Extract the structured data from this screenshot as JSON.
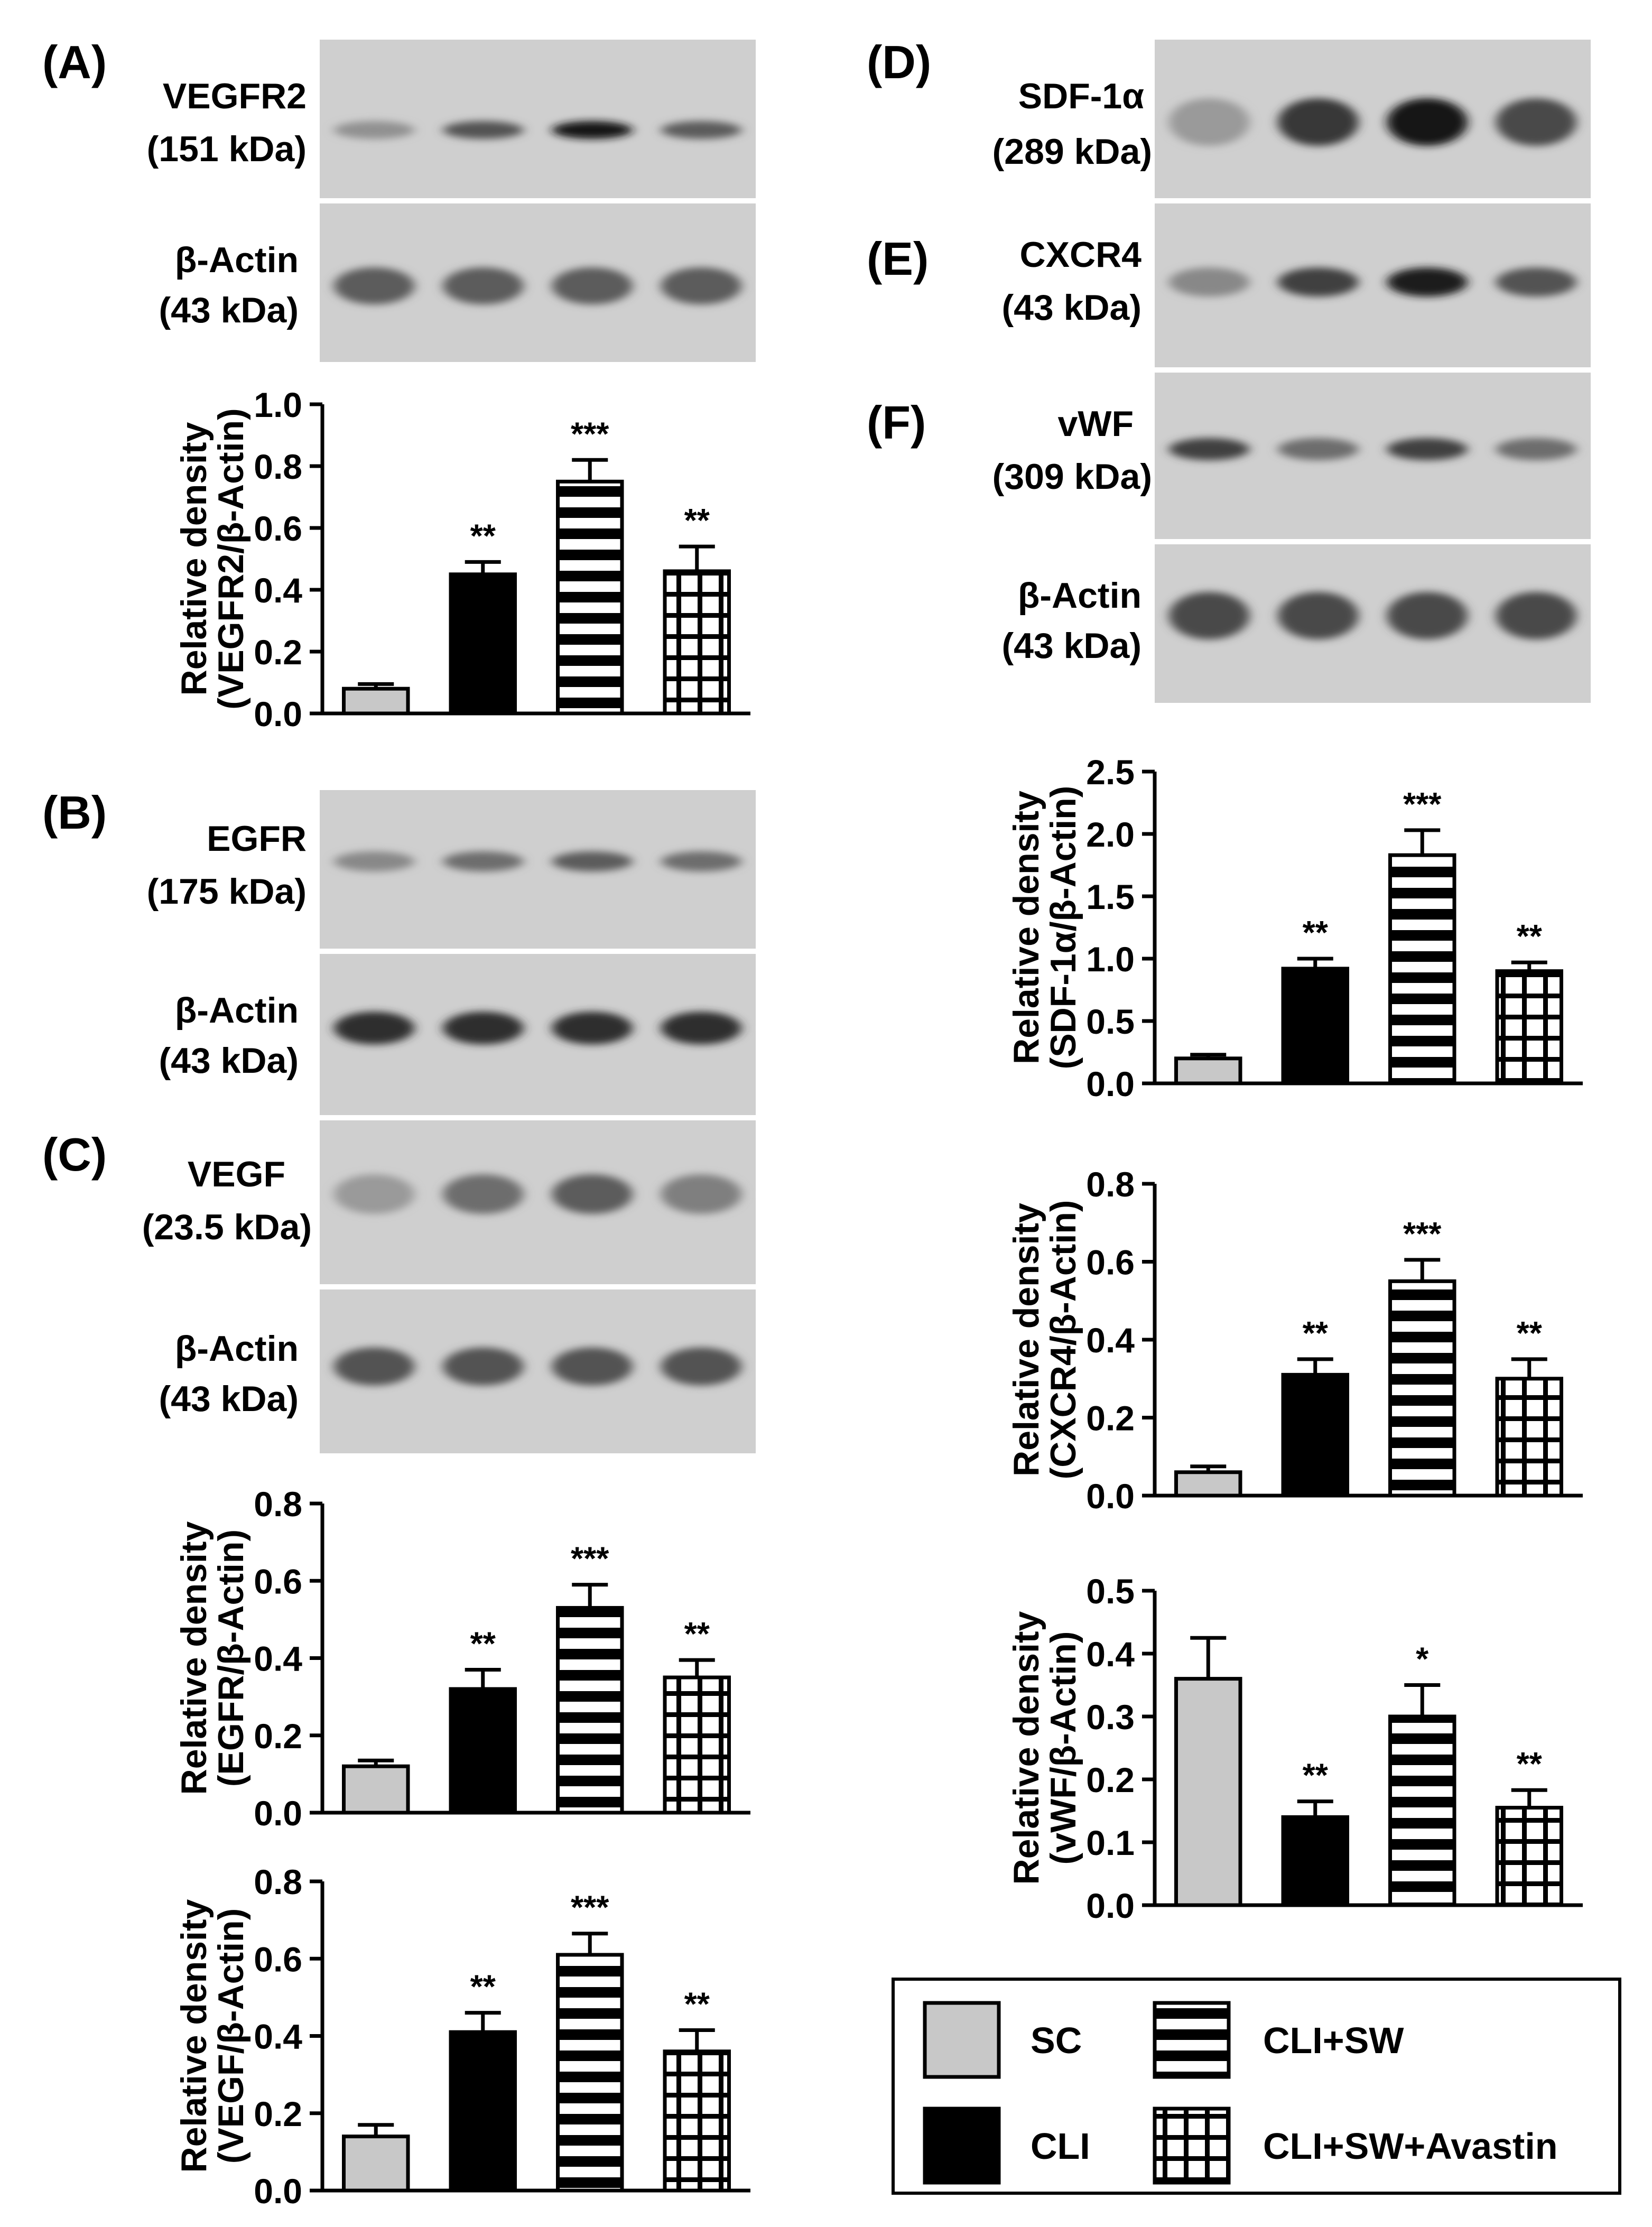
{
  "figure": {
    "panels": [
      {
        "letter": "(A)"
      },
      {
        "letter": "(B)"
      },
      {
        "letter": "(C)"
      },
      {
        "letter": "(D)"
      },
      {
        "letter": "(E)"
      },
      {
        "letter": "(F)"
      }
    ],
    "blots": [
      {
        "id": "vegfr2",
        "name": "VEGFR2",
        "kda": "(151 kDa)",
        "intensity": [
          0.25,
          0.6,
          0.95,
          0.55
        ]
      },
      {
        "id": "actin-a",
        "name": "β-Actin",
        "kda": "(43 kDa)",
        "intensity": [
          0.55,
          0.55,
          0.55,
          0.55
        ]
      },
      {
        "id": "egfr",
        "name": "EGFR",
        "kda": "(175 kDa)",
        "intensity": [
          0.3,
          0.45,
          0.55,
          0.45
        ]
      },
      {
        "id": "actin-b",
        "name": "β-Actin",
        "kda": "(43 kDa)",
        "intensity": [
          0.8,
          0.8,
          0.8,
          0.8
        ]
      },
      {
        "id": "vegf",
        "name": "VEGF",
        "kda": "(23.5 kDa)",
        "intensity": [
          0.2,
          0.45,
          0.55,
          0.35
        ]
      },
      {
        "id": "actin-c",
        "name": "β-Actin",
        "kda": "(43 kDa)",
        "intensity": [
          0.6,
          0.6,
          0.6,
          0.6
        ]
      },
      {
        "id": "sdf1a",
        "name": "SDF-1α",
        "kda": "(289 kDa)",
        "intensity": [
          0.2,
          0.75,
          0.95,
          0.65
        ]
      },
      {
        "id": "cxcr4",
        "name": "CXCR4",
        "kda": "(43 kDa)",
        "intensity": [
          0.3,
          0.7,
          0.9,
          0.6
        ]
      },
      {
        "id": "vwf",
        "name": "vWF",
        "kda": "(309 kDa)",
        "intensity": [
          0.7,
          0.45,
          0.7,
          0.45
        ]
      },
      {
        "id": "actin-f",
        "name": "β-Actin",
        "kda": "(43 kDa)",
        "intensity": [
          0.65,
          0.65,
          0.65,
          0.65
        ]
      }
    ],
    "legend": {
      "items": [
        {
          "label": "SC",
          "pattern": "gray"
        },
        {
          "label": "CLI+SW",
          "pattern": "hlines"
        },
        {
          "label": "CLI",
          "pattern": "black"
        },
        {
          "label": "CLI+SW+Avastin",
          "pattern": "grid"
        }
      ]
    }
  },
  "chart_data": [
    {
      "id": "vegfr2-chart",
      "type": "bar",
      "categories": [
        "SC",
        "CLI",
        "CLI+SW",
        "CLI+SW+Avastin"
      ],
      "values": [
        0.08,
        0.45,
        0.75,
        0.46
      ],
      "errors": [
        0.015,
        0.04,
        0.07,
        0.08
      ],
      "annotations": [
        "",
        "**",
        "***",
        "**"
      ],
      "ylabel_line1": "Relative density",
      "ylabel_line2": "(VEGFR2/β-Actin)",
      "ylim": [
        0,
        1.0
      ],
      "yticks": [
        "0.0",
        "0.2",
        "0.4",
        "0.6",
        "0.8",
        "1.0"
      ]
    },
    {
      "id": "egfr-chart",
      "type": "bar",
      "categories": [
        "SC",
        "CLI",
        "CLI+SW",
        "CLI+SW+Avastin"
      ],
      "values": [
        0.12,
        0.32,
        0.53,
        0.35
      ],
      "errors": [
        0.015,
        0.05,
        0.06,
        0.045
      ],
      "annotations": [
        "",
        "**",
        "***",
        "**"
      ],
      "ylabel_line1": "Relative density",
      "ylabel_line2": "(EGFR/β-Actin)",
      "ylim": [
        0,
        0.8
      ],
      "yticks": [
        "0.0",
        "0.2",
        "0.4",
        "0.6",
        "0.8"
      ]
    },
    {
      "id": "vegf-chart",
      "type": "bar",
      "categories": [
        "SC",
        "CLI",
        "CLI+SW",
        "CLI+SW+Avastin"
      ],
      "values": [
        0.14,
        0.41,
        0.61,
        0.36
      ],
      "errors": [
        0.03,
        0.05,
        0.055,
        0.055
      ],
      "annotations": [
        "",
        "**",
        "***",
        "**"
      ],
      "ylabel_line1": "Relative density",
      "ylabel_line2": "(VEGF/β-Actin)",
      "ylim": [
        0,
        0.8
      ],
      "yticks": [
        "0.0",
        "0.2",
        "0.4",
        "0.6",
        "0.8"
      ]
    },
    {
      "id": "sdf1a-chart",
      "type": "bar",
      "categories": [
        "SC",
        "CLI",
        "CLI+SW",
        "CLI+SW+Avastin"
      ],
      "values": [
        0.2,
        0.92,
        1.83,
        0.9
      ],
      "errors": [
        0.03,
        0.08,
        0.2,
        0.07
      ],
      "annotations": [
        "",
        "**",
        "***",
        "**"
      ],
      "ylabel_line1": "Relative density",
      "ylabel_line2": "(SDF-1α/β-Actin)",
      "ylim": [
        0,
        2.5
      ],
      "yticks": [
        "0.0",
        "0.5",
        "1.0",
        "1.5",
        "2.0",
        "2.5"
      ]
    },
    {
      "id": "cxcr4-chart",
      "type": "bar",
      "categories": [
        "SC",
        "CLI",
        "CLI+SW",
        "CLI+SW+Avastin"
      ],
      "values": [
        0.06,
        0.31,
        0.55,
        0.3
      ],
      "errors": [
        0.015,
        0.04,
        0.055,
        0.05
      ],
      "annotations": [
        "",
        "**",
        "***",
        "**"
      ],
      "ylabel_line1": "Relative density",
      "ylabel_line2": "(CXCR4/β-Actin)",
      "ylim": [
        0,
        0.8
      ],
      "yticks": [
        "0.0",
        "0.2",
        "0.4",
        "0.6",
        "0.8"
      ]
    },
    {
      "id": "vwf-chart",
      "type": "bar",
      "categories": [
        "SC",
        "CLI",
        "CLI+SW",
        "CLI+SW+Avastin"
      ],
      "values": [
        0.36,
        0.14,
        0.3,
        0.155
      ],
      "errors": [
        0.065,
        0.025,
        0.05,
        0.028
      ],
      "annotations": [
        "",
        "**",
        "*",
        "**"
      ],
      "ylabel_line1": "Relative density",
      "ylabel_line2": "(vWF/β-Actin)",
      "ylim": [
        0,
        0.5
      ],
      "yticks": [
        "0.0",
        "0.1",
        "0.2",
        "0.3",
        "0.4",
        "0.5"
      ]
    }
  ]
}
